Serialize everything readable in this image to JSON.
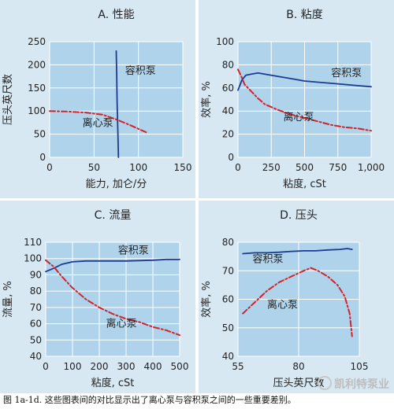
{
  "caption": "图 1a-1d. 这些图表间的对比显示出了离心泵与容积泵之间的一些重要差别。",
  "watermark": "凯利特泵业",
  "colors": {
    "panel_bg": "#d7e8f3",
    "plot_bg": "#aed3ea",
    "grid": "#ffffff",
    "pd_line": "#1f3a93",
    "cf_line": "#d2232a",
    "text": "#222222"
  },
  "chart_data": [
    {
      "type": "line",
      "title": "A. 性能",
      "xlabel": "能力, 加仑/分",
      "ylabel": "压头英尺数",
      "xlim": [
        0,
        150
      ],
      "ylim": [
        0,
        250
      ],
      "xticks": [
        0,
        50,
        100,
        150
      ],
      "xtick_labels": [
        "0",
        "50",
        "100",
        "150"
      ],
      "yticks": [
        0,
        50,
        100,
        150,
        200,
        250
      ],
      "ytick_labels": [
        "0",
        "50",
        "100",
        "150",
        "200",
        "250"
      ],
      "grid": true,
      "series": [
        {
          "name": "容积泵",
          "style": "solid",
          "color": "#1f3a93",
          "x": [
            75,
            75.5,
            76,
            76.5,
            77,
            77.5
          ],
          "y": [
            230,
            180,
            120,
            80,
            40,
            0
          ]
        },
        {
          "name": "离心泵",
          "style": "dashdot",
          "color": "#d2232a",
          "x": [
            0,
            20,
            40,
            60,
            75,
            90,
            110
          ],
          "y": [
            100,
            99,
            97,
            92,
            82,
            70,
            53
          ]
        }
      ],
      "annotations": [
        {
          "text": "容积泵",
          "x": 85,
          "y": 180
        },
        {
          "text": "离心泵",
          "x": 37,
          "y": 67
        }
      ]
    },
    {
      "type": "line",
      "title": "B. 粘度",
      "xlabel": "粘度, cSt",
      "ylabel": "效率, %",
      "xlim": [
        0,
        1000
      ],
      "ylim": [
        0,
        100
      ],
      "xticks": [
        0,
        250,
        500,
        750,
        1000
      ],
      "xtick_labels": [
        "0",
        "250",
        "500",
        "750",
        "1,000"
      ],
      "yticks": [
        0,
        20,
        40,
        60,
        80,
        100
      ],
      "ytick_labels": [
        "0",
        "20",
        "40",
        "60",
        "80",
        "100"
      ],
      "grid": true,
      "series": [
        {
          "name": "容积泵",
          "style": "solid",
          "color": "#1f3a93",
          "x": [
            0,
            30,
            60,
            100,
            150,
            200,
            300,
            400,
            500,
            600,
            700,
            800,
            900,
            1000
          ],
          "y": [
            58,
            67,
            71,
            72,
            73,
            72,
            70,
            68,
            66,
            65,
            64,
            63,
            62,
            61
          ]
        },
        {
          "name": "离心泵",
          "style": "dashdot",
          "color": "#d2232a",
          "x": [
            0,
            25,
            50,
            100,
            150,
            200,
            300,
            400,
            500,
            600,
            700,
            800,
            900,
            1000
          ],
          "y": [
            76,
            70,
            63,
            57,
            51,
            46,
            41,
            37,
            34,
            31,
            28,
            26,
            25,
            23
          ]
        }
      ],
      "annotations": [
        {
          "text": "容积泵",
          "x": 700,
          "y": 70
        },
        {
          "text": "离心泵",
          "x": 340,
          "y": 32
        }
      ]
    },
    {
      "type": "line",
      "title": "C. 流量",
      "xlabel": "粘度, cSt",
      "ylabel": "流量, %",
      "xlim": [
        0,
        500
      ],
      "ylim": [
        40,
        110
      ],
      "xticks": [
        0,
        100,
        200,
        300,
        400,
        500
      ],
      "xtick_labels": [
        "0",
        "100",
        "200",
        "300",
        "400",
        "500"
      ],
      "yticks": [
        40,
        50,
        60,
        70,
        80,
        90,
        100,
        110
      ],
      "ytick_labels": [
        "40",
        "50",
        "60",
        "70",
        "80",
        "90",
        "100",
        "110"
      ],
      "grid": true,
      "series": [
        {
          "name": "容积泵",
          "style": "solid",
          "color": "#1f3a93",
          "x": [
            0,
            30,
            60,
            100,
            150,
            200,
            300,
            400,
            450,
            500
          ],
          "y": [
            92,
            94,
            96.5,
            98,
            98.5,
            98.5,
            98.5,
            99,
            99.5,
            99.5
          ]
        },
        {
          "name": "离心泵",
          "style": "dashdot",
          "color": "#d2232a",
          "x": [
            0,
            30,
            60,
            100,
            150,
            200,
            250,
            300,
            350,
            400,
            450,
            500
          ],
          "y": [
            99,
            95,
            89,
            82,
            75,
            70,
            66,
            63,
            61,
            58,
            56,
            53
          ]
        }
      ],
      "annotations": [
        {
          "text": "容积泵",
          "x": 270,
          "y": 103
        },
        {
          "text": "离心泵",
          "x": 225,
          "y": 58
        }
      ]
    },
    {
      "type": "line",
      "title": "D. 压头",
      "xlabel": "压头英尺数",
      "ylabel": "效率, %",
      "xlim": [
        55,
        105
      ],
      "ylim": [
        40,
        80
      ],
      "xticks": [
        55,
        80,
        105
      ],
      "xtick_labels": [
        "55",
        "80",
        "105"
      ],
      "yticks": [
        40,
        50,
        60,
        70,
        80
      ],
      "ytick_labels": [
        "40",
        "50",
        "60",
        "70",
        "80"
      ],
      "grid": true,
      "series": [
        {
          "name": "容积泵",
          "style": "solid",
          "color": "#1f3a93",
          "x": [
            57,
            62,
            67,
            72,
            77,
            82,
            87,
            92,
            97,
            100,
            102
          ],
          "y": [
            76,
            76.3,
            76.3,
            76.5,
            76.8,
            77,
            77,
            77.3,
            77.5,
            77.8,
            77.5
          ]
        },
        {
          "name": "离心泵",
          "style": "dashdot",
          "color": "#d2232a",
          "x": [
            57,
            62,
            67,
            72,
            77,
            82,
            85,
            88,
            92,
            96,
            99,
            101,
            102
          ],
          "y": [
            55,
            59,
            63,
            66,
            68,
            70,
            71,
            70,
            68,
            65,
            61,
            55,
            47
          ]
        }
      ],
      "annotations": [
        {
          "text": "容积泵",
          "x": 61,
          "y": 73
        },
        {
          "text": "离心泵",
          "x": 67,
          "y": 57
        }
      ]
    }
  ]
}
